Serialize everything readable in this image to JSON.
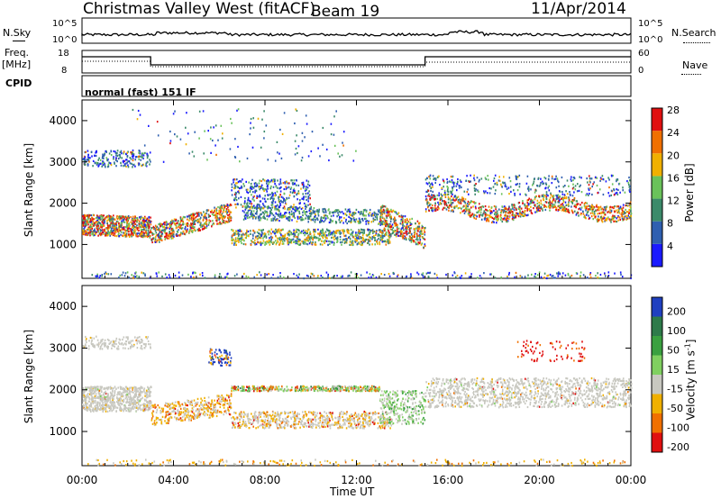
{
  "header": {
    "site": "Christmas Valley West (fitACF)",
    "beam": "Beam 19",
    "date": "11/Apr/2014"
  },
  "summary_panels": {
    "nsky_label": "N.Sky",
    "nsearch_label": "N.Search",
    "noise_top_tick": "10^5",
    "noise_bottom_tick": "10^0",
    "freq_label": "Freq.",
    "freq_unit": "[MHz]",
    "freq_top_tick": "18",
    "freq_bottom_tick": "8",
    "nave_label": "Nave",
    "nave_top_tick": "60",
    "nave_bottom_tick": "0",
    "cpid_label": "CPID",
    "cpid_value": "normal (fast) 151 IF"
  },
  "chart_data": [
    {
      "type": "heatmap",
      "title": "",
      "ylabel": "Slant Range [km]",
      "yticks": [
        "1000",
        "2000",
        "3000",
        "4000"
      ],
      "ylim": [
        180,
        4500
      ],
      "colorbar": {
        "label": "Power [dB]",
        "ticks": [
          "4",
          "8",
          "12",
          "16",
          "20",
          "24",
          "28"
        ],
        "range": [
          0,
          30
        ],
        "colors": [
          "#1a1aff",
          "#2f5fb0",
          "#3b8a6a",
          "#6ac25a",
          "#f0b000",
          "#f07000",
          "#e01010"
        ]
      }
    },
    {
      "type": "heatmap",
      "title": "",
      "ylabel": "Slant Range [km]",
      "yticks": [
        "1000",
        "2000",
        "3000",
        "4000"
      ],
      "ylim": [
        180,
        4500
      ],
      "colorbar": {
        "label": "Velocity [m s^-1]",
        "ticks": [
          "200",
          "100",
          "50",
          "15",
          "-15",
          "-50",
          "-100",
          "-200"
        ],
        "colors": [
          "#2040c0",
          "#2e7a4a",
          "#3aa040",
          "#80d060",
          "#c8c8c0",
          "#f0b000",
          "#f07000",
          "#e01010"
        ]
      }
    }
  ],
  "xaxis": {
    "label": "Time UT",
    "ticks": [
      "00:00",
      "04:00",
      "08:00",
      "12:00",
      "16:00",
      "20:00",
      "00:00"
    ]
  }
}
